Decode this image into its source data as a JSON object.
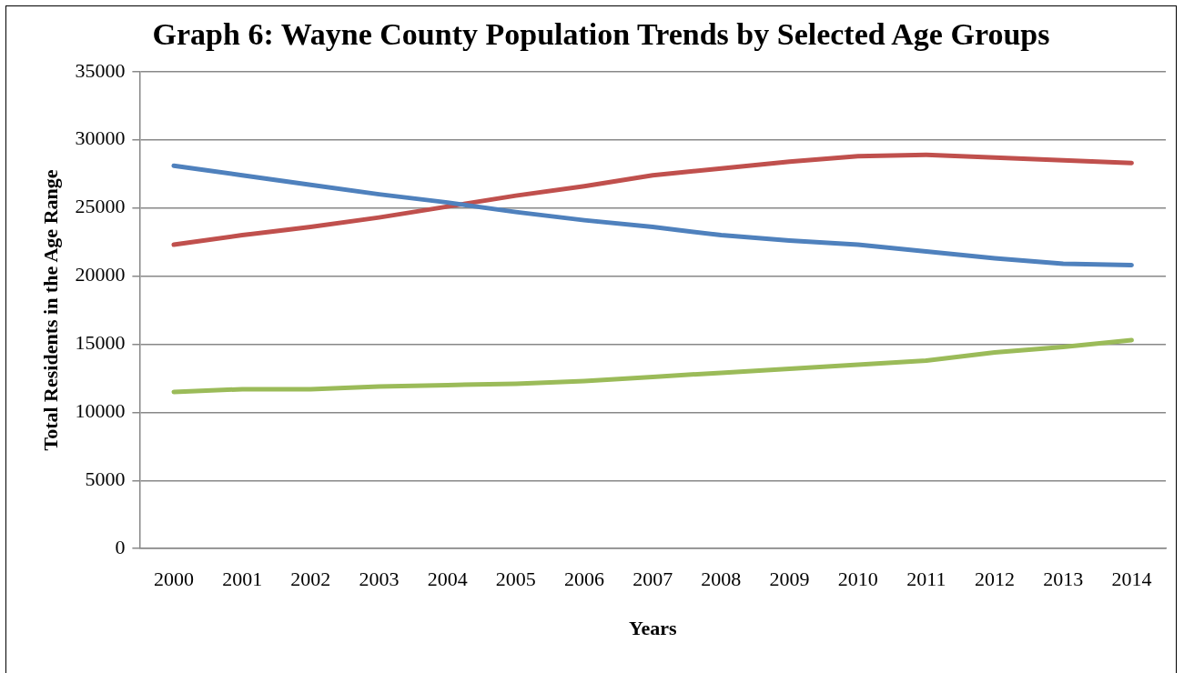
{
  "chart_data": {
    "type": "line",
    "title": "Graph 6: Wayne County Population Trends by Selected Age Groups",
    "xlabel": "Years",
    "ylabel": "Total Residents in the Age Range",
    "categories": [
      "2000",
      "2001",
      "2002",
      "2003",
      "2004",
      "2005",
      "2006",
      "2007",
      "2008",
      "2009",
      "2010",
      "2011",
      "2012",
      "2013",
      "2014"
    ],
    "series": [
      {
        "color": "#4f81bd",
        "values": [
          28100,
          27400,
          26700,
          26000,
          25400,
          24700,
          24100,
          23600,
          23000,
          22600,
          22300,
          21800,
          21300,
          20900,
          20800
        ]
      },
      {
        "color": "#c0504d",
        "values": [
          22300,
          23000,
          23600,
          24300,
          25100,
          25900,
          26600,
          27400,
          27900,
          28400,
          28800,
          28900,
          28700,
          28500,
          28300
        ]
      },
      {
        "color": "#9bbb59",
        "values": [
          11500,
          11700,
          11700,
          11900,
          12000,
          12100,
          12300,
          12600,
          12900,
          13200,
          13500,
          13800,
          14400,
          14800,
          15300
        ]
      }
    ],
    "ylim": [
      0,
      35000
    ],
    "yticks": [
      0,
      5000,
      10000,
      15000,
      20000,
      25000,
      30000,
      35000
    ],
    "grid": "y",
    "legend": false,
    "marker": "none",
    "line_style": "solid"
  }
}
